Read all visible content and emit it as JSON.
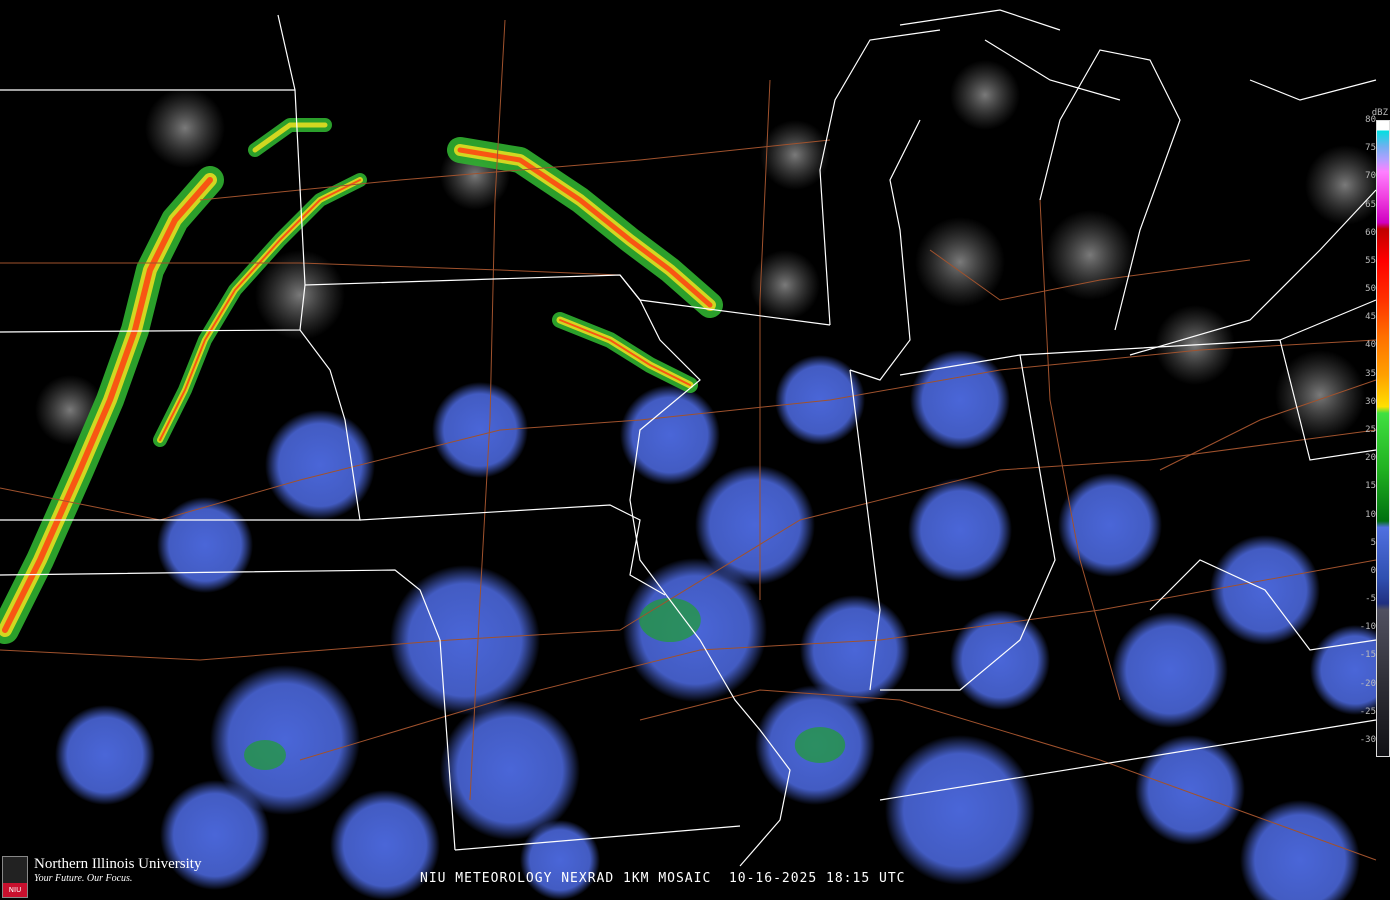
{
  "caption": {
    "product": "NIU METEOROLOGY NEXRAD 1KM MOSAIC",
    "datetime": "10-16-2025 18:15 UTC"
  },
  "logo": {
    "name": "Northern Illinois University",
    "tagline": "Your Future. Our Focus.",
    "mark": "NIU"
  },
  "colorbar": {
    "unit": "dBZ",
    "labels": [
      "80",
      "75",
      "70",
      "65",
      "60",
      "55",
      "50",
      "45",
      "40",
      "35",
      "30",
      "25",
      "20",
      "15",
      "10",
      "5",
      "0",
      "-5",
      "-10",
      "-15",
      "-20",
      "-25",
      "-30"
    ],
    "range": [
      -30,
      80
    ]
  },
  "colors": {
    "state_borders": "#ffffff",
    "highways": "#a0522d",
    "background": "#000000",
    "clear_air_return": "#4a66d8",
    "light_rain": "#20b020",
    "moderate": "#ffe000",
    "heavy": "#ff3000"
  }
}
